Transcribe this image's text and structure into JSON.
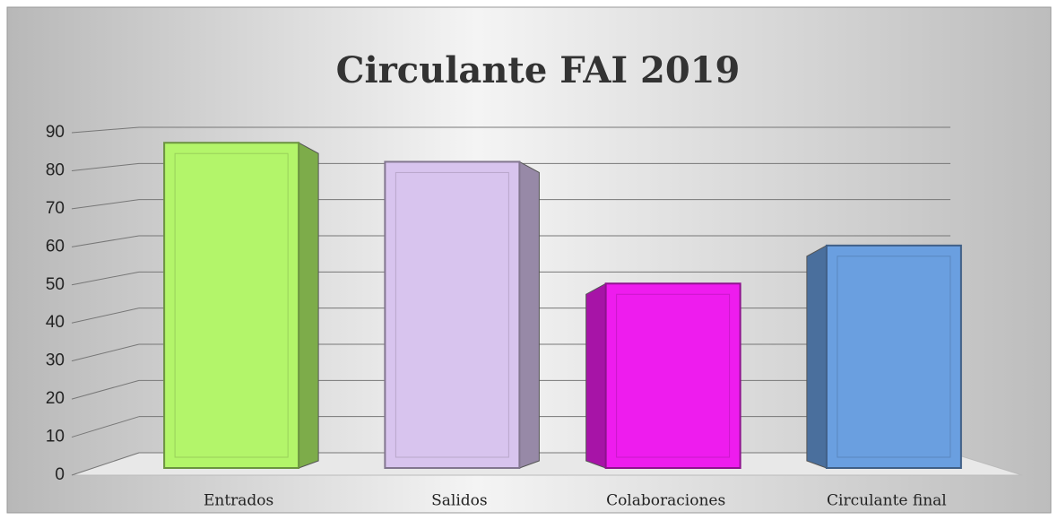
{
  "chart_data": {
    "type": "bar",
    "title": "Circulante FAI 2019",
    "categories": [
      "Entrados",
      "Salidos",
      "Colaboraciones",
      "Circulante final"
    ],
    "values": [
      85,
      80,
      48,
      58
    ],
    "colors": [
      "#b3f56a",
      "#d8c4ee",
      "#ee1cee",
      "#6a9fe0"
    ],
    "ylim": [
      0,
      90
    ],
    "yticks": [
      0,
      10,
      20,
      30,
      40,
      50,
      60,
      70,
      80,
      90
    ],
    "grid": true
  }
}
